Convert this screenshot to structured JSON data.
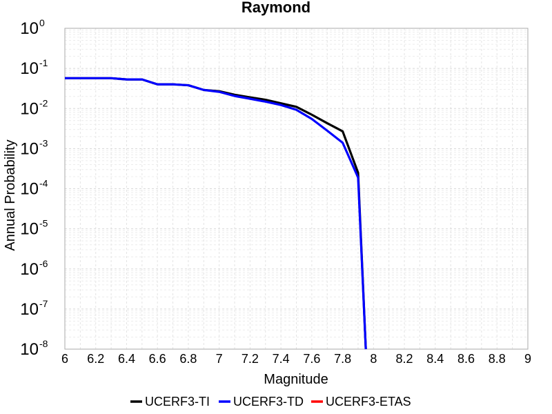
{
  "chart_data": {
    "type": "line",
    "title": "Raymond",
    "xlabel": "Magnitude",
    "ylabel": "Annual Probability",
    "xlim": [
      6,
      9
    ],
    "ylim": [
      1e-08,
      1
    ],
    "yscale": "log",
    "grid": true,
    "legend_position": "bottom",
    "x_ticks": [
      "6",
      "6.2",
      "6.4",
      "6.6",
      "6.8",
      "7",
      "7.2",
      "7.4",
      "7.6",
      "7.8",
      "8",
      "8.2",
      "8.4",
      "8.6",
      "8.8",
      "9"
    ],
    "y_ticks": [
      {
        "base": "10",
        "exp": "0"
      },
      {
        "base": "10",
        "exp": "-1"
      },
      {
        "base": "10",
        "exp": "-2"
      },
      {
        "base": "10",
        "exp": "-3"
      },
      {
        "base": "10",
        "exp": "-4"
      },
      {
        "base": "10",
        "exp": "-5"
      },
      {
        "base": "10",
        "exp": "-6"
      },
      {
        "base": "10",
        "exp": "-7"
      },
      {
        "base": "10",
        "exp": "-8"
      }
    ],
    "series": [
      {
        "name": "UCERF3-TI",
        "color": "#000000",
        "x": [
          6.0,
          6.1,
          6.2,
          6.3,
          6.4,
          6.5,
          6.6,
          6.7,
          6.8,
          6.9,
          7.0,
          7.1,
          7.2,
          7.3,
          7.4,
          7.5,
          7.6,
          7.7,
          7.8,
          7.9,
          7.95
        ],
        "y": [
          0.057,
          0.057,
          0.057,
          0.057,
          0.053,
          0.053,
          0.04,
          0.04,
          0.038,
          0.029,
          0.027,
          0.022,
          0.019,
          0.0165,
          0.0135,
          0.011,
          0.007,
          0.0043,
          0.0027,
          0.00025,
          1e-08
        ]
      },
      {
        "name": "UCERF3-TD",
        "color": "#0000ff",
        "x": [
          6.0,
          6.1,
          6.2,
          6.3,
          6.4,
          6.5,
          6.6,
          6.7,
          6.8,
          6.9,
          7.0,
          7.1,
          7.2,
          7.3,
          7.4,
          7.5,
          7.6,
          7.7,
          7.8,
          7.9,
          7.95
        ],
        "y": [
          0.057,
          0.057,
          0.057,
          0.057,
          0.053,
          0.053,
          0.04,
          0.04,
          0.038,
          0.029,
          0.026,
          0.0205,
          0.0175,
          0.0148,
          0.0122,
          0.0093,
          0.0055,
          0.0028,
          0.0014,
          0.00019,
          1e-08
        ]
      },
      {
        "name": "UCERF3-ETAS",
        "color": "#ff0000",
        "x": [],
        "y": []
      }
    ]
  }
}
